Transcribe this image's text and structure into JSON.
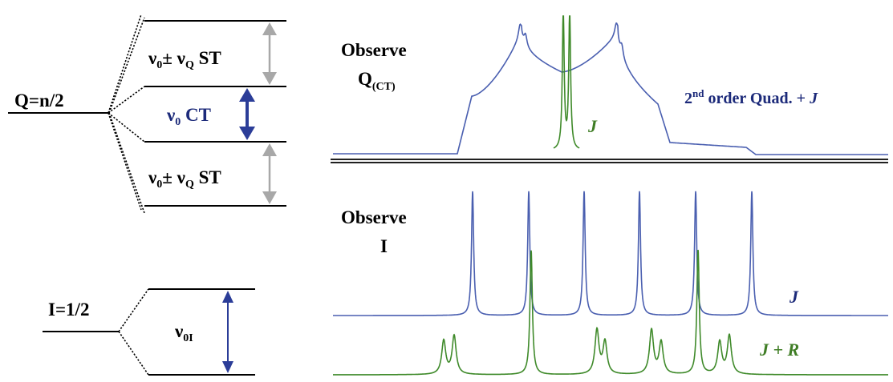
{
  "energy_diagram": {
    "quadrupolar": {
      "spin_label": "Q=n/2",
      "st_upper": {
        "nu": "ν",
        "sub0": "0",
        "pm": "±",
        "sub_q": "Q",
        "suffix": "ST"
      },
      "ct": {
        "nu": "ν",
        "sub0": "0",
        "suffix": "CT"
      },
      "st_lower": {
        "nu": "ν",
        "sub0": "0",
        "pm": "±",
        "sub_q": "Q",
        "suffix": "ST"
      }
    },
    "spin_half": {
      "spin_label": "I=1/2",
      "transition": {
        "nu": "ν",
        "sub": "0I"
      }
    }
  },
  "spectra": {
    "top": {
      "observe_label": "Observe",
      "nucleus": "Q",
      "nucleus_sub": "(CT)",
      "blue_label": {
        "sup_prefix": "2",
        "sup": "nd",
        "text": "order Quad. + ",
        "j": "J"
      },
      "green_label": "J"
    },
    "bottom": {
      "observe_label": "Observe",
      "nucleus": "I",
      "blue_label": "J",
      "green_label": "J + R"
    }
  },
  "colors": {
    "blue_trace": "#4a5fb0",
    "green_trace": "#3f8a2a",
    "blue_text": "#1c2a7a",
    "green_text": "#3f7d25",
    "ct_arrow": "#2b3d98",
    "grey_arrow": "#a8a8a8",
    "levels": "#000000"
  }
}
